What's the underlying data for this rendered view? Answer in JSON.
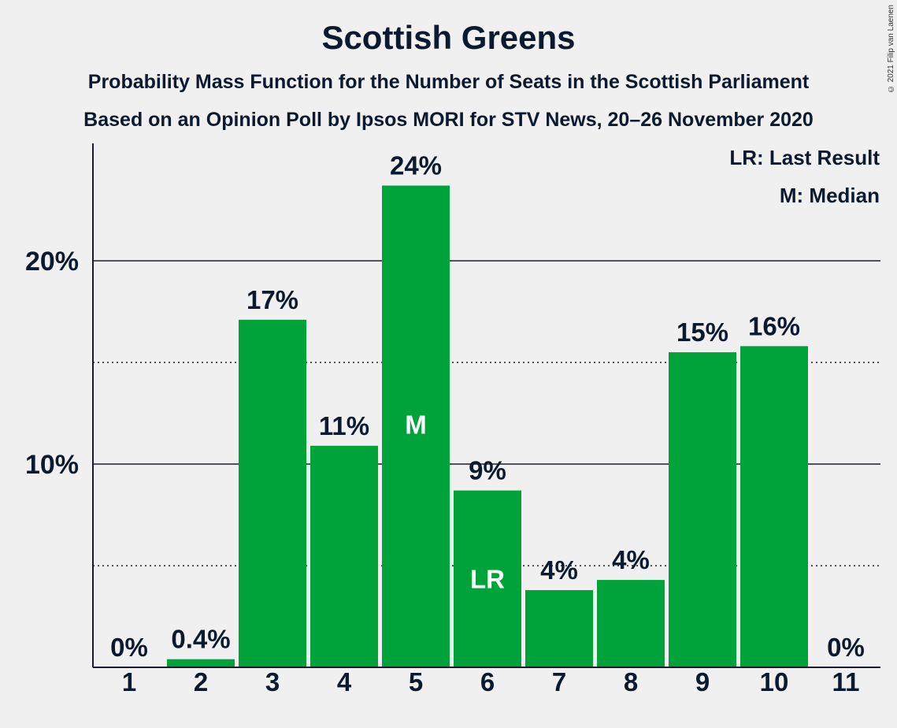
{
  "chart_data": {
    "type": "bar",
    "title": "Scottish Greens",
    "subtitle_1": "Probability Mass Function for the Number of Seats in the Scottish Parliament",
    "subtitle_2": "Based on an Opinion Poll by Ipsos MORI for STV News, 20–26 November 2020",
    "categories": [
      "1",
      "2",
      "3",
      "4",
      "5",
      "6",
      "7",
      "8",
      "9",
      "10",
      "11"
    ],
    "values": [
      0,
      0.4,
      17.1,
      10.9,
      23.7,
      8.7,
      3.8,
      4.3,
      15.5,
      15.8,
      0
    ],
    "value_labels": [
      "0%",
      "0.4%",
      "17%",
      "11%",
      "24%",
      "9%",
      "4%",
      "4%",
      "15%",
      "16%",
      "0%"
    ],
    "bar_markers": {
      "5": "M",
      "6": "LR"
    },
    "ylim": [
      0,
      26
    ],
    "y_ticks": [
      10,
      20
    ],
    "y_tick_labels": [
      "10%",
      "20%"
    ],
    "legend": [
      "LR: Last Result",
      "M: Median"
    ],
    "legend_position": "top-right",
    "bar_color": "#00a33a",
    "grid": true
  },
  "copyright": "© 2021 Filip van Laenen"
}
